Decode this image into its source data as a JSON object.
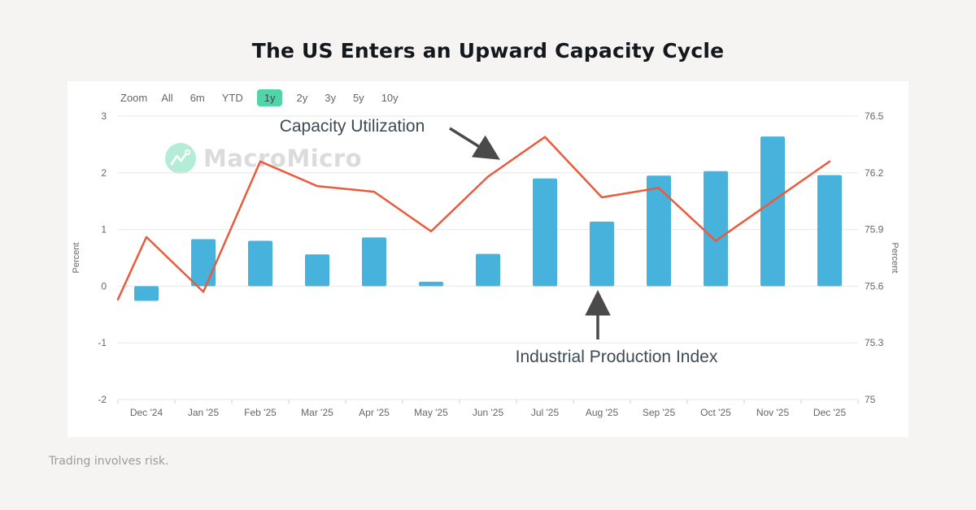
{
  "header": {
    "title": "The US Enters an Upward Capacity Cycle"
  },
  "toolbar": {
    "zoom_label": "Zoom",
    "active_bg": "#52d5a6",
    "ranges": [
      {
        "label": "All",
        "active": false
      },
      {
        "label": "6m",
        "active": false
      },
      {
        "label": "YTD",
        "active": false
      },
      {
        "label": "1y",
        "active": true
      },
      {
        "label": "2y",
        "active": false
      },
      {
        "label": "3y",
        "active": false
      },
      {
        "label": "5y",
        "active": false
      },
      {
        "label": "10y",
        "active": false
      }
    ]
  },
  "watermark": {
    "brand": "MacroMicro"
  },
  "annotations": {
    "line_label": "Capacity Utilization",
    "bar_label": "Industrial Production Index"
  },
  "footer": {
    "disclaimer": "Trading involves risk."
  },
  "chart_data": {
    "type": "combo: bar + line, dual y-axes",
    "categories": [
      "Dec '24",
      "Jan '25",
      "Feb '25",
      "Mar '25",
      "Apr '25",
      "May '25",
      "Jun '25",
      "Jul '25",
      "Aug '25",
      "Sep '25",
      "Oct '25",
      "Nov '25",
      "Dec '25"
    ],
    "series": [
      {
        "name": "Industrial Production Index",
        "type": "bar",
        "axis": "left",
        "unit": "Percent",
        "color": "#47b2dc",
        "values": [
          -0.26,
          0.83,
          0.8,
          0.56,
          0.86,
          0.08,
          0.57,
          1.9,
          1.14,
          1.95,
          2.03,
          2.64,
          1.96
        ]
      },
      {
        "name": "Capacity Utilization",
        "type": "line",
        "axis": "right",
        "unit": "Percent",
        "color": "#e85b3d",
        "values": [
          75.86,
          75.57,
          76.26,
          76.13,
          76.1,
          75.89,
          76.18,
          76.39,
          76.07,
          76.12,
          75.84,
          76.05,
          76.26
        ],
        "lead_in_value_at_plot_edge": 75.53
      }
    ],
    "left_axis": {
      "title": "Percent",
      "min": -2,
      "max": 3,
      "ticks": [
        3,
        2,
        1,
        0,
        -1,
        -2
      ]
    },
    "right_axis": {
      "title": "Percent",
      "min": 75,
      "max": 76.5,
      "ticks": [
        76.5,
        76.2,
        75.9,
        75.6,
        75.3,
        75
      ]
    },
    "grid": "horizontal only",
    "legend": "none (labels drawn as arrow annotations)"
  }
}
